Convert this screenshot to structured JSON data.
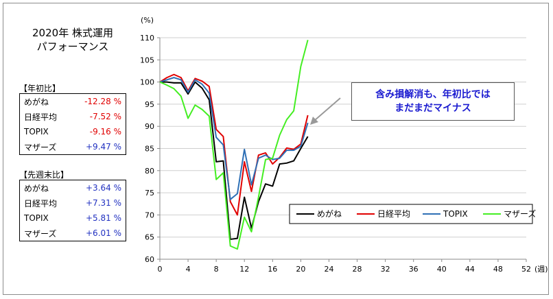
{
  "title_lines": [
    "2020年 株式運用",
    "パフォーマンス"
  ],
  "ytd": {
    "label": "【年初比】",
    "rows": [
      {
        "name": "めがね",
        "value": "-12.28 %",
        "sign": "neg"
      },
      {
        "name": "日経平均",
        "value": "-7.52 %",
        "sign": "neg"
      },
      {
        "name": "TOPIX",
        "value": "-9.16 %",
        "sign": "neg"
      },
      {
        "name": "マザーズ",
        "value": "+9.47 %",
        "sign": "pos"
      }
    ]
  },
  "wow": {
    "label": "【先週末比】",
    "rows": [
      {
        "name": "めがね",
        "value": "+3.64 %",
        "sign": "pos"
      },
      {
        "name": "日経平均",
        "value": "+7.31 %",
        "sign": "pos"
      },
      {
        "name": "TOPIX",
        "value": "+5.81 %",
        "sign": "pos"
      },
      {
        "name": "マザーズ",
        "value": "+6.01 %",
        "sign": "pos"
      }
    ]
  },
  "callout": [
    "含み損解消も、年初比では",
    "まだまだマイナス"
  ],
  "chart_data": {
    "type": "line",
    "ylabel": "(%)",
    "xlabel": "(週)",
    "xlim": [
      0,
      52
    ],
    "ylim": [
      60,
      110
    ],
    "xticks": [
      0,
      4,
      8,
      12,
      16,
      20,
      24,
      28,
      32,
      36,
      40,
      44,
      48,
      52
    ],
    "yticks": [
      60,
      65,
      70,
      75,
      80,
      85,
      90,
      95,
      100,
      105,
      110
    ],
    "x": [
      0,
      1,
      2,
      3,
      4,
      5,
      6,
      7,
      8,
      9,
      10,
      11,
      12,
      13,
      14,
      15,
      16,
      17,
      18,
      19,
      20,
      21
    ],
    "legend_position": "bottom-right",
    "series": [
      {
        "name": "めがね",
        "color": "#000000",
        "values": [
          100,
          100,
          99.8,
          99.8,
          97.3,
          100,
          98.6,
          96,
          82,
          82.2,
          64.5,
          64.7,
          74,
          67,
          73,
          77,
          76.5,
          81.5,
          81.7,
          82.2,
          85,
          87.7
        ]
      },
      {
        "name": "日経平均",
        "color": "#e00000",
        "values": [
          100,
          101,
          101.7,
          101,
          98,
          100.8,
          100.2,
          99,
          89.3,
          87.7,
          73,
          70,
          82,
          75.3,
          83.5,
          84,
          81.5,
          83,
          85.1,
          84.8,
          86,
          92.5
        ]
      },
      {
        "name": "TOPIX",
        "color": "#2e6fb5",
        "values": [
          100,
          100.5,
          101,
          100.5,
          97.7,
          100.5,
          99.5,
          97.5,
          87.5,
          85.8,
          73.5,
          74.8,
          84.8,
          76.8,
          82.8,
          83.5,
          82.5,
          82.8,
          84.6,
          84.6,
          85.5,
          90.8
        ]
      },
      {
        "name": "マザーズ",
        "color": "#44ee22",
        "values": [
          100,
          99.3,
          98.5,
          96.8,
          91.8,
          94.8,
          93.8,
          92.3,
          78,
          79.5,
          63,
          62.3,
          69.5,
          66.2,
          74,
          82.5,
          82.8,
          88,
          91.5,
          93.5,
          103.5,
          109.5
        ]
      }
    ]
  }
}
